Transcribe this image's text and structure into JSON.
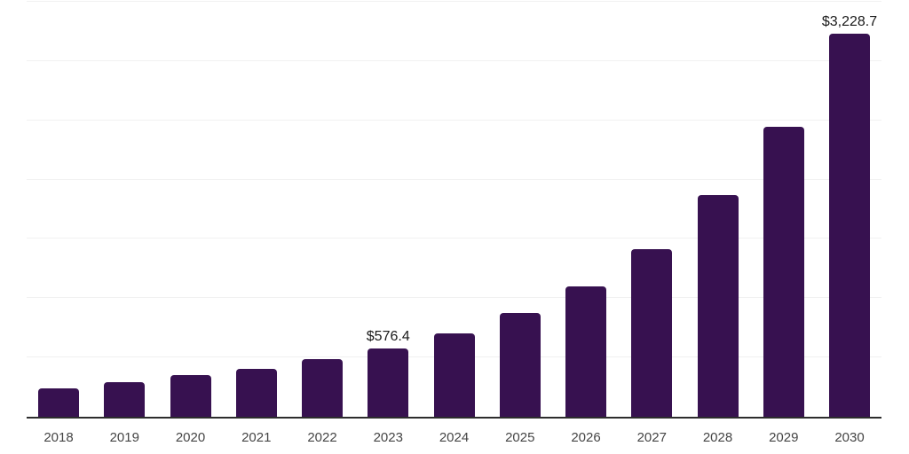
{
  "chart_data": {
    "type": "bar",
    "title": "",
    "xlabel": "",
    "ylabel": "",
    "categories": [
      "2018",
      "2019",
      "2020",
      "2021",
      "2022",
      "2023",
      "2024",
      "2025",
      "2026",
      "2027",
      "2028",
      "2029",
      "2030"
    ],
    "values": [
      243,
      292,
      352,
      404,
      486,
      576.4,
      703,
      875,
      1100,
      1414,
      1870,
      2446,
      3228.7
    ],
    "data_labels": [
      "",
      "",
      "",
      "",
      "",
      "$576.4",
      "",
      "",
      "",
      "",
      "",
      "",
      "$3,228.7"
    ],
    "ylim": [
      0,
      3500
    ],
    "gridline_interval": 500,
    "grid": true,
    "legend_position": "none",
    "value_prefix": "$",
    "bar_color": "#371150",
    "gridline_color": "#f1f1f1",
    "axis_line_color": "#2d2d2d",
    "tick_label_color": "#454545",
    "data_label_color": "#1a1a1a",
    "background_color": "#ffffff"
  }
}
